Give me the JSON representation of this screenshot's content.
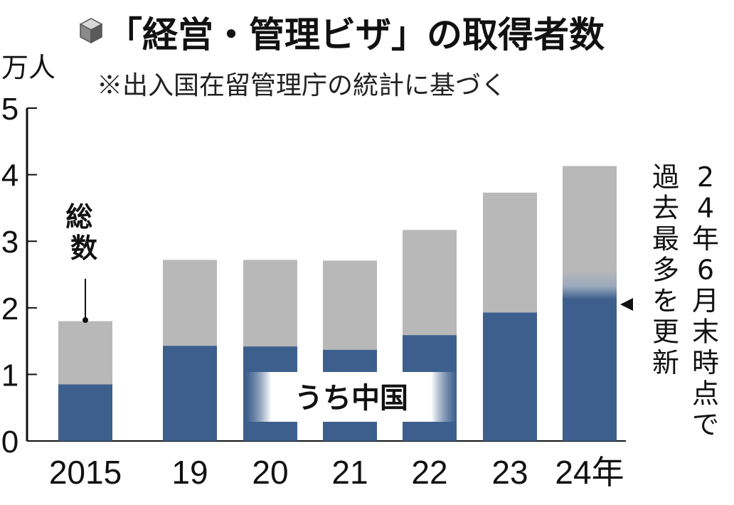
{
  "chart_data": {
    "type": "bar",
    "title": "「経営・管理ビザ」の取得者数",
    "subtitle": "※出入国在留管理庁の統計に基づく",
    "y_unit": "万人",
    "ylim": [
      0,
      5
    ],
    "y_ticks": [
      "0",
      "1",
      "2",
      "3",
      "4",
      "5"
    ],
    "categories": [
      "2015",
      "19",
      "20",
      "21",
      "22",
      "23",
      "24年"
    ],
    "series": [
      {
        "name": "総数",
        "values": [
          1.8,
          2.72,
          2.72,
          2.71,
          3.17,
          3.73,
          4.13
        ],
        "color": "#b8b8b8"
      },
      {
        "name": "うち中国",
        "values": [
          0.85,
          1.43,
          1.42,
          1.37,
          1.59,
          1.93,
          2.15
        ],
        "color": "#3d5f8d"
      }
    ],
    "annotations": {
      "total_label": "総数",
      "china_label": "うち中国",
      "note_col1": "24年6月末時点で",
      "note_col2": "過去最多を更新"
    },
    "icon": "cube-icon",
    "grid": false,
    "legend": "none"
  }
}
